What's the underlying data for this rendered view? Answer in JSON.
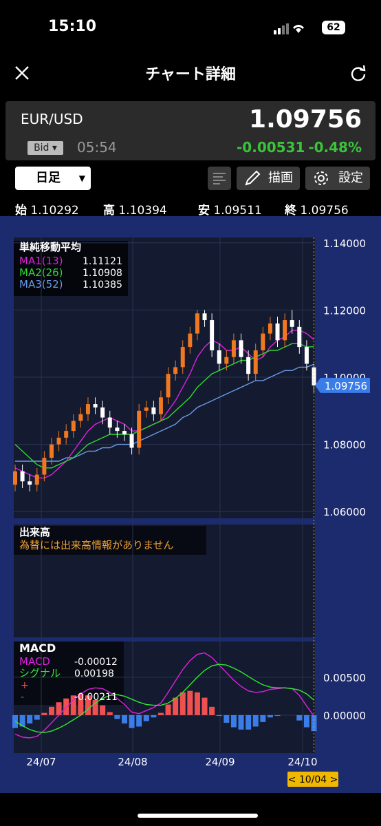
{
  "status_bar": {
    "time": "15:10",
    "battery": "62"
  },
  "header": {
    "title": "チャート詳細"
  },
  "quote": {
    "pair": "EUR/USD",
    "side": "Bid",
    "time": "05:54",
    "change": "-0.00531",
    "change_pct": "-0.48%"
  },
  "toolbar": {
    "period": "日足",
    "draw": "描画",
    "settings": "設定"
  },
  "ohlc_labels": {
    "open": "始",
    "high": "高",
    "low": "安",
    "close": "終"
  },
  "chart_data": {
    "type": "candlestick",
    "open": [
      1.068,
      1.072,
      1.069,
      1.068,
      1.071,
      1.076,
      1.08,
      1.082,
      1.084,
      1.087,
      1.089,
      1.092,
      1.091,
      1.088,
      1.085,
      1.084,
      1.083,
      1.079,
      1.09,
      1.091,
      1.089,
      1.094,
      1.101,
      1.103,
      1.109,
      1.113,
      1.119,
      1.117,
      1.108,
      1.104,
      1.106,
      1.111,
      1.106,
      1.101,
      1.108,
      1.113,
      1.116,
      1.111,
      1.117,
      1.115,
      1.109,
      1.10292
    ],
    "high": [
      1.074,
      1.074,
      1.071,
      1.073,
      1.078,
      1.082,
      1.084,
      1.086,
      1.089,
      1.091,
      1.094,
      1.094,
      1.093,
      1.09,
      1.087,
      1.086,
      1.085,
      1.092,
      1.093,
      1.093,
      1.096,
      1.103,
      1.105,
      1.111,
      1.115,
      1.12,
      1.12,
      1.119,
      1.11,
      1.108,
      1.113,
      1.113,
      1.108,
      1.11,
      1.115,
      1.118,
      1.118,
      1.119,
      1.12,
      1.117,
      1.111,
      1.10394
    ],
    "low": [
      1.066,
      1.067,
      1.066,
      1.066,
      1.069,
      1.074,
      1.078,
      1.08,
      1.082,
      1.085,
      1.087,
      1.089,
      1.086,
      1.083,
      1.082,
      1.081,
      1.077,
      1.077,
      1.088,
      1.087,
      1.087,
      1.092,
      1.099,
      1.101,
      1.107,
      1.111,
      1.115,
      1.106,
      1.102,
      1.102,
      1.104,
      1.104,
      1.099,
      1.099,
      1.106,
      1.111,
      1.109,
      1.109,
      1.113,
      1.107,
      1.102,
      1.09511
    ],
    "close": [
      1.072,
      1.069,
      1.068,
      1.071,
      1.076,
      1.08,
      1.082,
      1.084,
      1.087,
      1.089,
      1.092,
      1.091,
      1.088,
      1.085,
      1.084,
      1.083,
      1.079,
      1.09,
      1.091,
      1.089,
      1.094,
      1.101,
      1.103,
      1.109,
      1.113,
      1.119,
      1.117,
      1.108,
      1.104,
      1.106,
      1.111,
      1.106,
      1.101,
      1.108,
      1.113,
      1.116,
      1.111,
      1.117,
      1.115,
      1.109,
      1.104,
      1.09756
    ],
    "up_color": "#f07820",
    "down_color": "#ffffff",
    "ylim": [
      1.0582,
      1.1416
    ],
    "yticks": [
      {
        "value": 1.14,
        "label": "1.14000"
      },
      {
        "value": 1.12,
        "label": "1.12000"
      },
      {
        "value": 1.1,
        "label": "1.10000"
      },
      {
        "value": 1.08,
        "label": "1.08000"
      },
      {
        "value": 1.06,
        "label": "1.06000"
      }
    ],
    "ma_title": "単純移動平均",
    "series": [
      {
        "name": "MA1(13)",
        "color": "#e020e0",
        "values": [
          1.073,
          1.072,
          1.071,
          1.07,
          1.07,
          1.071,
          1.073,
          1.075,
          1.078,
          1.081,
          1.084,
          1.086,
          1.087,
          1.088,
          1.087,
          1.086,
          1.084,
          1.084,
          1.085,
          1.086,
          1.087,
          1.09,
          1.093,
          1.097,
          1.101,
          1.106,
          1.109,
          1.111,
          1.11,
          1.108,
          1.108,
          1.109,
          1.107,
          1.105,
          1.106,
          1.109,
          1.111,
          1.112,
          1.114,
          1.114,
          1.113,
          1.11121
        ]
      },
      {
        "name": "MA2(26)",
        "color": "#30d830",
        "values": [
          1.08,
          1.078,
          1.076,
          1.074,
          1.073,
          1.073,
          1.074,
          1.075,
          1.076,
          1.078,
          1.08,
          1.081,
          1.082,
          1.083,
          1.083,
          1.083,
          1.083,
          1.084,
          1.085,
          1.086,
          1.087,
          1.088,
          1.09,
          1.092,
          1.094,
          1.097,
          1.099,
          1.101,
          1.102,
          1.103,
          1.104,
          1.105,
          1.105,
          1.106,
          1.107,
          1.108,
          1.108,
          1.109,
          1.11,
          1.11,
          1.109,
          1.10908
        ]
      },
      {
        "name": "MA3(52)",
        "color": "#6a9ae8",
        "values": [
          1.075,
          1.075,
          1.075,
          1.075,
          1.075,
          1.075,
          1.075,
          1.076,
          1.076,
          1.077,
          1.078,
          1.078,
          1.079,
          1.079,
          1.08,
          1.08,
          1.08,
          1.081,
          1.082,
          1.083,
          1.084,
          1.085,
          1.086,
          1.088,
          1.089,
          1.091,
          1.092,
          1.093,
          1.094,
          1.095,
          1.096,
          1.097,
          1.098,
          1.099,
          1.099,
          1.1,
          1.101,
          1.102,
          1.102,
          1.103,
          1.103,
          1.10385
        ]
      }
    ],
    "volume": {
      "title": "出来高",
      "note": "為替には出来高情報がありません"
    },
    "macd": {
      "title": "MACD",
      "ylim": [
        -0.0049,
        0.0097
      ],
      "yticks": [
        {
          "value": 0.005,
          "label": "0.00500"
        },
        {
          "value": 0,
          "label": "0.00000"
        }
      ],
      "series": [
        {
          "name": "MACD",
          "color": "#e020e0",
          "values": [
            -0.0025,
            -0.0029,
            -0.003,
            -0.0028,
            -0.002,
            -0.001,
            0.0,
            0.001,
            0.002,
            0.0028,
            0.0034,
            0.0036,
            0.0035,
            0.003,
            0.0022,
            0.0014,
            0.0004,
            0.0002,
            0.0006,
            0.001,
            0.0016,
            0.003,
            0.0045,
            0.006,
            0.0072,
            0.008,
            0.0082,
            0.0076,
            0.0066,
            0.0056,
            0.0046,
            0.0038,
            0.0032,
            0.003,
            0.0031,
            0.0034,
            0.0035,
            0.0036,
            0.0035,
            0.0026,
            0.0012,
            -0.00012
          ]
        },
        {
          "name": "シグナル",
          "color": "#30e830",
          "values": [
            -0.0008,
            -0.0014,
            -0.0019,
            -0.0022,
            -0.0023,
            -0.0021,
            -0.0017,
            -0.0012,
            -0.0006,
            0.0,
            0.0008,
            0.0016,
            0.0022,
            0.0026,
            0.0027,
            0.0025,
            0.0021,
            0.0017,
            0.0014,
            0.0013,
            0.0013,
            0.0016,
            0.0022,
            0.003,
            0.004,
            0.005,
            0.0059,
            0.0065,
            0.0067,
            0.0066,
            0.0062,
            0.0057,
            0.0051,
            0.0045,
            0.004,
            0.0037,
            0.0036,
            0.0036,
            0.0035,
            0.0033,
            0.0028,
            0.00198
          ]
        }
      ],
      "histogram": {
        "positive_name": "+",
        "negative_name": "-",
        "positive_color": "#f05050",
        "negative_color": "#3a7de8",
        "values": [
          -0.0017,
          -0.0015,
          -0.0011,
          -0.0006,
          0.0003,
          0.0011,
          0.0017,
          0.0022,
          0.0026,
          0.0028,
          0.0026,
          0.002,
          0.0013,
          0.0004,
          -0.0005,
          -0.0011,
          -0.0017,
          -0.0015,
          -0.0008,
          -0.0003,
          0.0003,
          0.0014,
          0.0023,
          0.003,
          0.0032,
          0.003,
          0.0023,
          0.0011,
          -0.0001,
          -0.001,
          -0.0016,
          -0.0019,
          -0.0019,
          -0.0015,
          -0.0009,
          -0.0003,
          -0.0001,
          0.0,
          0.0,
          -0.0007,
          -0.0016,
          -0.00211
        ]
      }
    },
    "x_labels": [
      "24/07",
      "24/08",
      "24/09",
      "24/10"
    ],
    "cursor_label": "< 10/04 >"
  }
}
